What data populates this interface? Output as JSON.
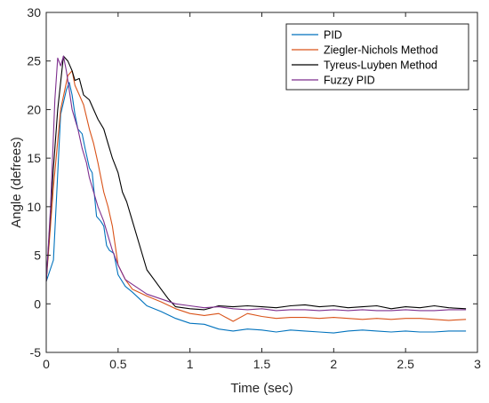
{
  "chart_data": {
    "type": "line",
    "xlabel": "Time (sec)",
    "ylabel": "Angle (defrees)",
    "xlim": [
      0,
      3
    ],
    "ylim": [
      -5,
      30
    ],
    "xticks": [
      0,
      0.5,
      1,
      1.5,
      2,
      2.5,
      3
    ],
    "xtick_labels": [
      "0",
      "0.5",
      "1",
      "1.5",
      "2",
      "2.5",
      "3"
    ],
    "yticks": [
      -5,
      0,
      5,
      10,
      15,
      20,
      25,
      30
    ],
    "ytick_labels": [
      "-5",
      "0",
      "5",
      "10",
      "15",
      "20",
      "25",
      "30"
    ],
    "grid": false,
    "legend_position": "top-right",
    "series": [
      {
        "name": "PID",
        "color": "#0072BD",
        "points": [
          [
            0,
            2.3
          ],
          [
            0.05,
            4.5
          ],
          [
            0.1,
            19.5
          ],
          [
            0.14,
            22.0
          ],
          [
            0.16,
            22.8
          ],
          [
            0.18,
            21.5
          ],
          [
            0.2,
            19.5
          ],
          [
            0.22,
            18.0
          ],
          [
            0.25,
            17.5
          ],
          [
            0.27,
            16.0
          ],
          [
            0.3,
            14.0
          ],
          [
            0.32,
            13.5
          ],
          [
            0.35,
            9.0
          ],
          [
            0.38,
            8.5
          ],
          [
            0.4,
            8.0
          ],
          [
            0.42,
            6.0
          ],
          [
            0.44,
            5.5
          ],
          [
            0.47,
            5.2
          ],
          [
            0.5,
            3.0
          ],
          [
            0.55,
            1.8
          ],
          [
            0.6,
            1.2
          ],
          [
            0.65,
            0.5
          ],
          [
            0.7,
            -0.2
          ],
          [
            0.8,
            -0.8
          ],
          [
            0.9,
            -1.5
          ],
          [
            1.0,
            -2.0
          ],
          [
            1.1,
            -2.1
          ],
          [
            1.2,
            -2.6
          ],
          [
            1.3,
            -2.8
          ],
          [
            1.4,
            -2.6
          ],
          [
            1.5,
            -2.7
          ],
          [
            1.6,
            -2.9
          ],
          [
            1.7,
            -2.7
          ],
          [
            1.8,
            -2.8
          ],
          [
            1.9,
            -2.9
          ],
          [
            2.0,
            -3.0
          ],
          [
            2.1,
            -2.8
          ],
          [
            2.2,
            -2.7
          ],
          [
            2.3,
            -2.8
          ],
          [
            2.4,
            -2.9
          ],
          [
            2.5,
            -2.8
          ],
          [
            2.6,
            -2.9
          ],
          [
            2.7,
            -2.9
          ],
          [
            2.8,
            -2.8
          ],
          [
            2.92,
            -2.8
          ]
        ]
      },
      {
        "name": "Ziegler-Nichols Method",
        "color": "#D95319",
        "points": [
          [
            0,
            2.3
          ],
          [
            0.05,
            12.0
          ],
          [
            0.1,
            20.0
          ],
          [
            0.15,
            23.5
          ],
          [
            0.18,
            24.0
          ],
          [
            0.2,
            22.5
          ],
          [
            0.23,
            21.5
          ],
          [
            0.26,
            20.5
          ],
          [
            0.3,
            18.0
          ],
          [
            0.33,
            16.5
          ],
          [
            0.36,
            14.5
          ],
          [
            0.4,
            11.5
          ],
          [
            0.43,
            10.0
          ],
          [
            0.46,
            8.0
          ],
          [
            0.5,
            4.0
          ],
          [
            0.55,
            2.5
          ],
          [
            0.6,
            1.5
          ],
          [
            0.7,
            0.8
          ],
          [
            0.8,
            0.2
          ],
          [
            0.9,
            -0.5
          ],
          [
            1.0,
            -1.0
          ],
          [
            1.1,
            -1.2
          ],
          [
            1.2,
            -1.0
          ],
          [
            1.3,
            -1.8
          ],
          [
            1.4,
            -1.0
          ],
          [
            1.5,
            -1.3
          ],
          [
            1.6,
            -1.5
          ],
          [
            1.7,
            -1.4
          ],
          [
            1.8,
            -1.4
          ],
          [
            1.9,
            -1.5
          ],
          [
            2.0,
            -1.4
          ],
          [
            2.1,
            -1.5
          ],
          [
            2.2,
            -1.6
          ],
          [
            2.3,
            -1.5
          ],
          [
            2.4,
            -1.6
          ],
          [
            2.5,
            -1.5
          ],
          [
            2.6,
            -1.5
          ],
          [
            2.7,
            -1.6
          ],
          [
            2.8,
            -1.7
          ],
          [
            2.92,
            -1.6
          ]
        ]
      },
      {
        "name": "Tyreus-Luyben Method",
        "color": "#000000",
        "points": [
          [
            0,
            2.3
          ],
          [
            0.05,
            14.0
          ],
          [
            0.08,
            20.0
          ],
          [
            0.12,
            25.5
          ],
          [
            0.15,
            25.0
          ],
          [
            0.18,
            24.0
          ],
          [
            0.2,
            23.0
          ],
          [
            0.23,
            23.2
          ],
          [
            0.26,
            21.5
          ],
          [
            0.3,
            21.0
          ],
          [
            0.33,
            20.0
          ],
          [
            0.36,
            19.0
          ],
          [
            0.4,
            18.0
          ],
          [
            0.43,
            16.5
          ],
          [
            0.46,
            15.0
          ],
          [
            0.5,
            13.5
          ],
          [
            0.53,
            11.5
          ],
          [
            0.56,
            10.5
          ],
          [
            0.6,
            8.5
          ],
          [
            0.65,
            6.0
          ],
          [
            0.7,
            3.5
          ],
          [
            0.75,
            2.5
          ],
          [
            0.8,
            1.5
          ],
          [
            0.85,
            0.5
          ],
          [
            0.9,
            -0.3
          ],
          [
            1.0,
            -0.5
          ],
          [
            1.1,
            -0.6
          ],
          [
            1.2,
            -0.2
          ],
          [
            1.3,
            -0.3
          ],
          [
            1.4,
            -0.2
          ],
          [
            1.5,
            -0.3
          ],
          [
            1.6,
            -0.4
          ],
          [
            1.7,
            -0.2
          ],
          [
            1.8,
            -0.1
          ],
          [
            1.9,
            -0.3
          ],
          [
            2.0,
            -0.2
          ],
          [
            2.1,
            -0.4
          ],
          [
            2.2,
            -0.3
          ],
          [
            2.3,
            -0.2
          ],
          [
            2.4,
            -0.5
          ],
          [
            2.5,
            -0.3
          ],
          [
            2.6,
            -0.4
          ],
          [
            2.7,
            -0.2
          ],
          [
            2.8,
            -0.4
          ],
          [
            2.92,
            -0.5
          ]
        ]
      },
      {
        "name": "Fuzzy PID",
        "color": "#7E2F8E",
        "points": [
          [
            0,
            2.3
          ],
          [
            0.03,
            10.0
          ],
          [
            0.06,
            21.0
          ],
          [
            0.08,
            25.3
          ],
          [
            0.1,
            24.5
          ],
          [
            0.12,
            25.5
          ],
          [
            0.14,
            24.0
          ],
          [
            0.16,
            22.0
          ],
          [
            0.18,
            20.0
          ],
          [
            0.2,
            19.0
          ],
          [
            0.22,
            18.0
          ],
          [
            0.25,
            16.0
          ],
          [
            0.28,
            14.5
          ],
          [
            0.3,
            13.0
          ],
          [
            0.33,
            11.5
          ],
          [
            0.36,
            10.0
          ],
          [
            0.4,
            8.5
          ],
          [
            0.43,
            7.0
          ],
          [
            0.46,
            5.5
          ],
          [
            0.5,
            4.0
          ],
          [
            0.55,
            2.5
          ],
          [
            0.6,
            2.0
          ],
          [
            0.7,
            1.0
          ],
          [
            0.8,
            0.5
          ],
          [
            0.9,
            0.0
          ],
          [
            1.0,
            -0.2
          ],
          [
            1.1,
            -0.4
          ],
          [
            1.2,
            -0.3
          ],
          [
            1.3,
            -0.5
          ],
          [
            1.4,
            -0.6
          ],
          [
            1.5,
            -0.5
          ],
          [
            1.6,
            -0.7
          ],
          [
            1.7,
            -0.6
          ],
          [
            1.8,
            -0.6
          ],
          [
            1.9,
            -0.7
          ],
          [
            2.0,
            -0.6
          ],
          [
            2.1,
            -0.7
          ],
          [
            2.2,
            -0.6
          ],
          [
            2.3,
            -0.7
          ],
          [
            2.4,
            -0.7
          ],
          [
            2.5,
            -0.6
          ],
          [
            2.6,
            -0.7
          ],
          [
            2.7,
            -0.7
          ],
          [
            2.8,
            -0.6
          ],
          [
            2.92,
            -0.6
          ]
        ]
      }
    ]
  }
}
